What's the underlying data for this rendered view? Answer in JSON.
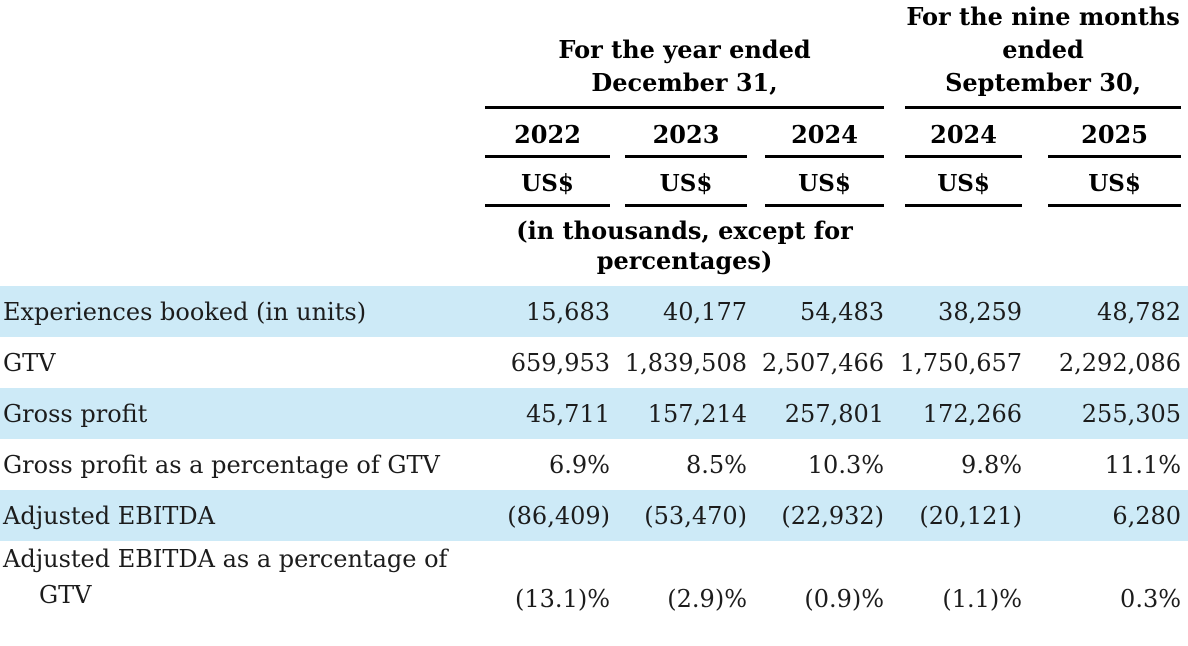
{
  "table": {
    "header": {
      "groups": [
        {
          "lines": [
            "For the year ended",
            "December 31,"
          ],
          "span": 3
        },
        {
          "lines": [
            "For the nine months",
            "ended",
            "September 30,"
          ],
          "span": 2
        }
      ],
      "years": [
        "2022",
        "2023",
        "2024",
        "2024",
        "2025"
      ],
      "unit_labels": [
        "US$",
        "US$",
        "US$",
        "US$",
        "US$"
      ],
      "note_lines": [
        "(in thousands, except for",
        "percentages)"
      ]
    },
    "rows": [
      {
        "label": "Experiences booked (in units)",
        "values": [
          "15,683",
          "40,177",
          "54,483",
          "38,259",
          "48,782"
        ],
        "highlighted": true
      },
      {
        "label": "GTV",
        "values": [
          "659,953",
          "1,839,508",
          "2,507,466",
          "1,750,657",
          "2,292,086"
        ],
        "highlighted": false
      },
      {
        "label": "Gross profit",
        "values": [
          "45,711",
          "157,214",
          "257,801",
          "172,266",
          "255,305"
        ],
        "highlighted": true
      },
      {
        "label": "Gross profit as a percentage of GTV",
        "values": [
          "6.9%",
          "8.5%",
          "10.3%",
          "9.8%",
          "11.1%"
        ],
        "highlighted": false
      },
      {
        "label": "Adjusted EBITDA",
        "values": [
          "(86,409)",
          "(53,470)",
          "(22,932)",
          "(20,121)",
          "6,280"
        ],
        "highlighted": true
      },
      {
        "label": "Adjusted EBITDA as a percentage of GTV",
        "values": [
          "(13.1)%",
          "(2.9)%",
          "(0.9)%",
          "(1.1)%",
          "0.3%"
        ],
        "highlighted": false
      }
    ],
    "colors": {
      "row_highlight": "#cdeaf7",
      "text": "#1c1c1c",
      "rule": "#000000"
    }
  }
}
